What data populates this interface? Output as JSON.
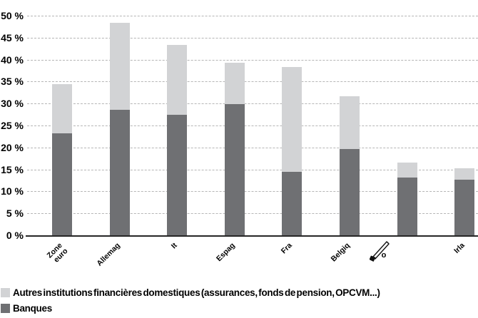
{
  "chart_data": {
    "type": "bar",
    "stacked": true,
    "title": "",
    "xlabel": "",
    "ylabel": "",
    "ylim": [
      0,
      50
    ],
    "ytick_step": 5,
    "ytick_labels": [
      "0 %",
      "5 %",
      "10 %",
      "15 %",
      "20 %",
      "25 %",
      "30 %",
      "35 %",
      "40 %",
      "45 %",
      "50 %"
    ],
    "grid": "horizontal-dashed",
    "categories": [
      {
        "label": "Zone\neuro"
      },
      {
        "label": "Allemag"
      },
      {
        "label": "It"
      },
      {
        "label": "Espag"
      },
      {
        "label": "Fra"
      },
      {
        "label": "Belgiq"
      },
      {
        "label": "o",
        "icon": "pencil-icon"
      },
      {
        "label": "Irla"
      }
    ],
    "series": [
      {
        "name": "Banques",
        "color": "#6f7073",
        "values": [
          23.2,
          28.5,
          27.5,
          29.9,
          14.5,
          19.6,
          13.2,
          12.7
        ]
      },
      {
        "name": "Autres institutions financières domestiques (assurances, fonds de pension, OPCVM...)",
        "color": "#d2d3d5",
        "values": [
          11.2,
          19.9,
          15.8,
          9.4,
          23.8,
          12.0,
          3.3,
          2.5
        ]
      }
    ],
    "legend": {
      "position": "bottom-left",
      "entries": [
        {
          "label": "Autres institutions financières domestiques (assurances, fonds de pension, OPCVM...)",
          "color": "#d2d3d5"
        },
        {
          "label": "Banques",
          "color": "#6f7073"
        }
      ]
    },
    "colors": {
      "grid": "#b5b5b5",
      "axis": "#262626",
      "text": "#000000"
    }
  }
}
